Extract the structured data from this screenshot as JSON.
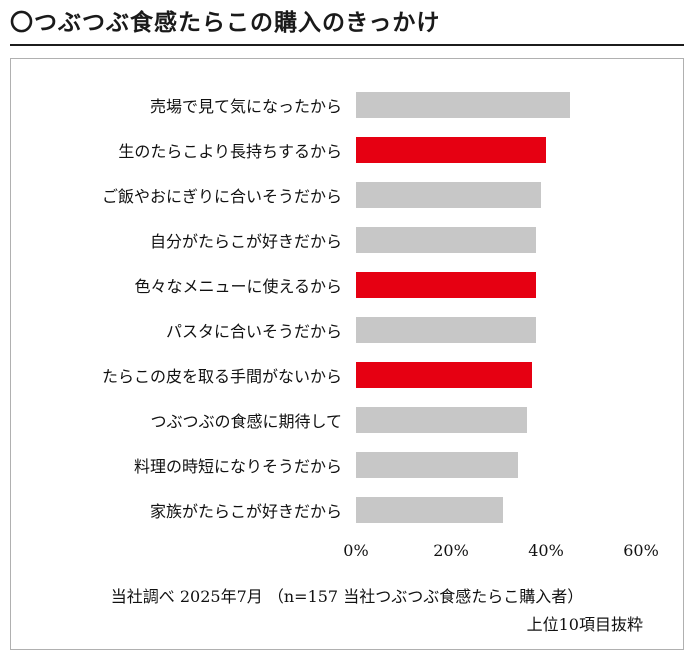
{
  "title": "〇つぶつぶ食感たらこの購入のきっかけ",
  "colors": {
    "accent_red": "#e60012",
    "bar_gray": "#c7c7c7"
  },
  "chart_data": {
    "type": "bar",
    "orientation": "horizontal",
    "title": "つぶつぶ食感たらこの購入のきっかけ",
    "categories": [
      "売場で見て気になったから",
      "生のたらこより長持ちするから",
      "ご飯やおにぎりに合いそうだから",
      "自分がたらこが好きだから",
      "色々なメニューに使えるから",
      "パスタに合いそうだから",
      "たらこの皮を取る手間がないから",
      "つぶつぶの食感に期待して",
      "料理の時短になりそうだから",
      "家族がたらこが好きだから"
    ],
    "values": [
      45,
      40,
      39,
      38,
      38,
      38,
      37,
      36,
      34,
      31
    ],
    "highlighted_indices": [
      1,
      4,
      6
    ],
    "xlim": [
      0,
      60
    ],
    "x_ticks": [
      "0%",
      "20%",
      "40%",
      "60%"
    ],
    "grid": false,
    "legend": "none"
  },
  "footer": {
    "line1": "当社調べ  2025年7月  （n=157  当社つぶつぶ食感たらこ購入者）",
    "line2": "上位10項目抜粋"
  }
}
